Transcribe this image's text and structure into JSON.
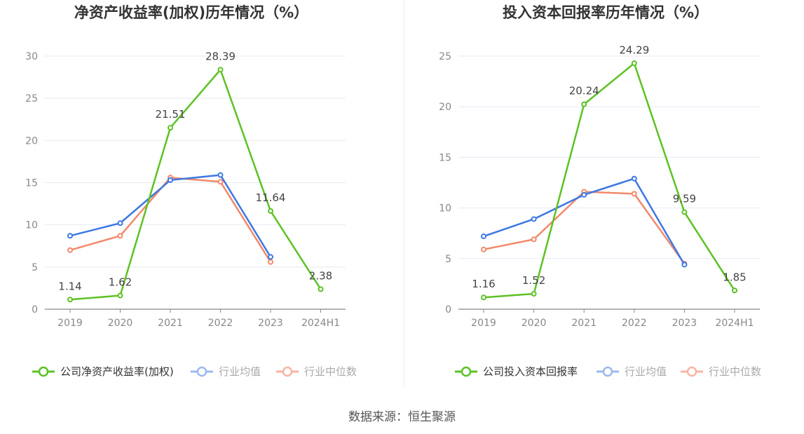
{
  "colors": {
    "company": "#5cc224",
    "avg": "#3d78e3",
    "median": "#f2896b",
    "grid": "#e6e9f2",
    "axis": "#888888",
    "tick_text": "#888888",
    "title": "#333333",
    "label": "#444444",
    "legend_text": "#666666",
    "legend_inactive": "#aaaaaa"
  },
  "source": "数据来源：恒生聚源",
  "chart_data": [
    {
      "type": "line",
      "title": "净资产收益率(加权)历年情况（%）",
      "categories": [
        "2019",
        "2020",
        "2021",
        "2022",
        "2023",
        "2024H1"
      ],
      "ylim": [
        0,
        30
      ],
      "yticks": [
        "0",
        "5",
        "10",
        "15",
        "20",
        "25",
        "30"
      ],
      "series": [
        {
          "name": "公司净资产收益率(加权)",
          "key": "company",
          "values": [
            1.14,
            1.62,
            21.51,
            28.39,
            11.64,
            2.38
          ],
          "labels": [
            "1.14",
            "1.62",
            "21.51",
            "28.39",
            "11.64",
            "2.38"
          ]
        },
        {
          "name": "行业均值",
          "key": "avg",
          "values": [
            8.7,
            10.2,
            15.3,
            15.9,
            6.2,
            null
          ]
        },
        {
          "name": "行业中位数",
          "key": "median",
          "values": [
            7.0,
            8.7,
            15.6,
            15.1,
            5.6,
            null
          ]
        }
      ]
    },
    {
      "type": "line",
      "title": "投入资本回报率历年情况（%）",
      "categories": [
        "2019",
        "2020",
        "2021",
        "2022",
        "2023",
        "2024H1"
      ],
      "ylim": [
        0,
        25
      ],
      "yticks": [
        "0",
        "5",
        "10",
        "15",
        "20",
        "25"
      ],
      "series": [
        {
          "name": "公司投入资本回报率",
          "key": "company",
          "values": [
            1.16,
            1.52,
            20.24,
            24.29,
            9.59,
            1.85
          ],
          "labels": [
            "1.16",
            "1.52",
            "20.24",
            "24.29",
            "9.59",
            "1.85"
          ]
        },
        {
          "name": "行业均值",
          "key": "avg",
          "values": [
            7.2,
            8.9,
            11.3,
            12.9,
            4.4,
            null
          ]
        },
        {
          "name": "行业中位数",
          "key": "median",
          "values": [
            5.9,
            6.9,
            11.6,
            11.4,
            4.5,
            null
          ]
        }
      ]
    }
  ]
}
